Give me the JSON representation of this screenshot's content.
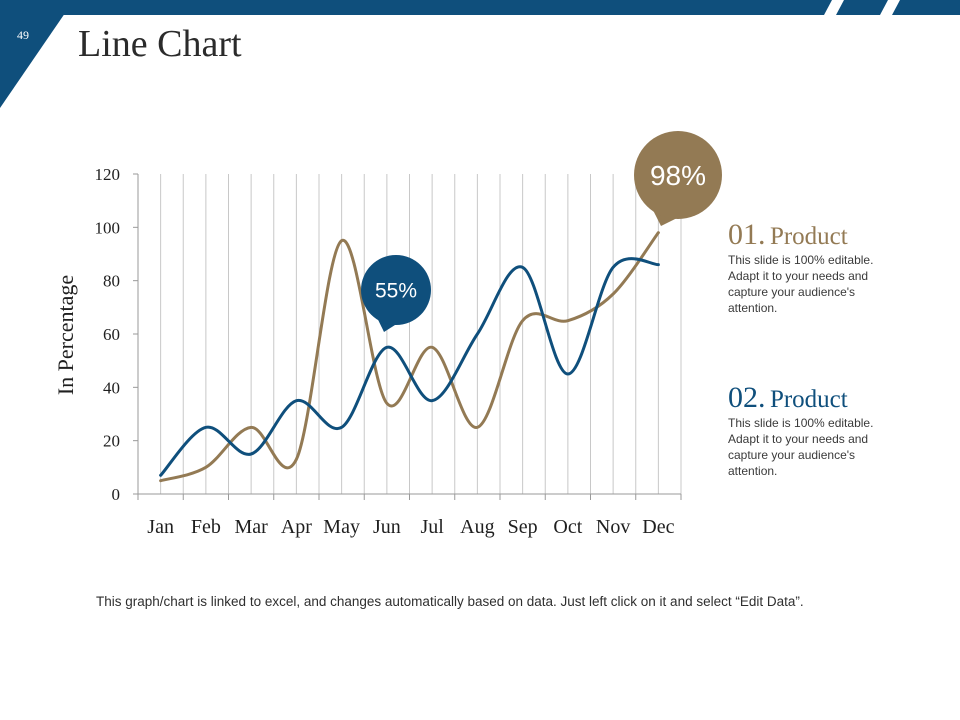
{
  "page": {
    "number": "49",
    "title": "Line Chart"
  },
  "colors": {
    "navy": "#0f4f7c",
    "tan": "#937a54",
    "grid": "#c8c8c8",
    "axis": "#9a9a9a"
  },
  "chart_data": {
    "type": "line",
    "title": "Line Chart",
    "xlabel": "",
    "ylabel": "In Percentage",
    "categories": [
      "Jan",
      "Feb",
      "Mar",
      "Apr",
      "May",
      "Jun",
      "Jul",
      "Aug",
      "Sep",
      "Oct",
      "Nov",
      "Dec"
    ],
    "ylim": [
      0,
      120
    ],
    "yticks": [
      0,
      20,
      40,
      60,
      80,
      100,
      120
    ],
    "grid": "vertical",
    "smooth": true,
    "series": [
      {
        "name": "Product 01",
        "color": "#937a54",
        "values": [
          5,
          10,
          25,
          13,
          95,
          34,
          55,
          25,
          65,
          65,
          75,
          98
        ]
      },
      {
        "name": "Product 02",
        "color": "#0f4f7c",
        "values": [
          7,
          25,
          15,
          35,
          25,
          55,
          35,
          60,
          85,
          45,
          85,
          86
        ]
      }
    ],
    "callouts": [
      {
        "label": "55%",
        "series": 1,
        "color": "#0f4f7c"
      },
      {
        "label": "98%",
        "series": 0,
        "color": "#937a54"
      }
    ]
  },
  "products": [
    {
      "number": "01.",
      "name": "Product",
      "color": "#937a54",
      "description": "This slide is 100% editable. Adapt it to your needs and capture your audience's attention."
    },
    {
      "number": "02.",
      "name": "Product",
      "color": "#0f4f7c",
      "description": "This slide is 100% editable. Adapt it to your needs and capture your audience's attention."
    }
  ],
  "footer": "This graph/chart is linked to excel, and changes automatically based on data. Just left click on it and select “Edit Data”."
}
